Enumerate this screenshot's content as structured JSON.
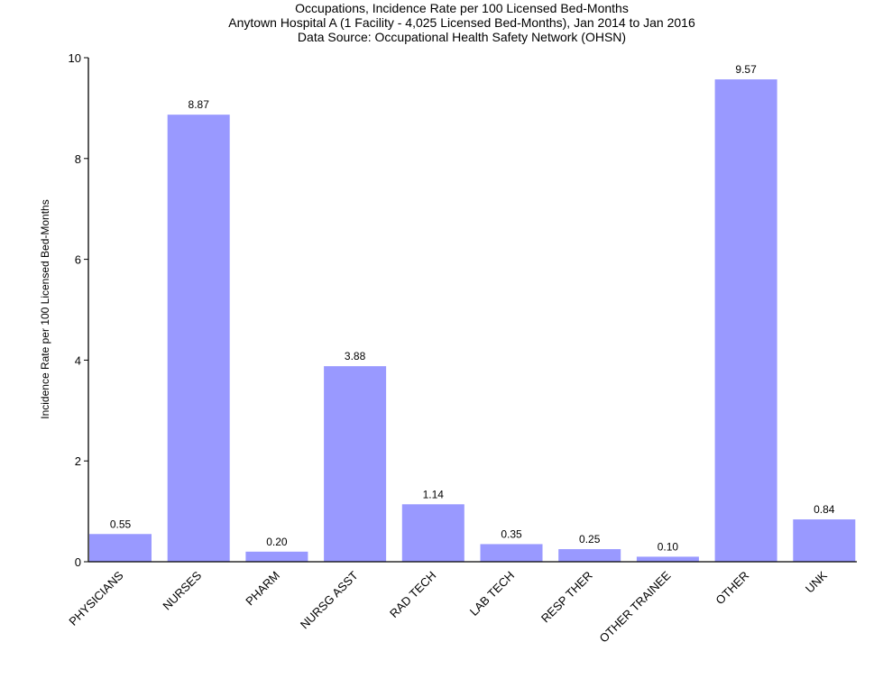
{
  "chart_data": {
    "type": "bar",
    "title": "Occupations, Incidence Rate per 100 Licensed Bed-Months",
    "subtitle": "Anytown Hospital A (1 Facility - 4,025 Licensed Bed-Months), Jan 2014 to Jan 2016",
    "subtitle2": "Data Source: Occupational Health Safety Network (OHSN)",
    "xlabel": "",
    "ylabel": "Incidence Rate per 100 Licensed Bed-Months",
    "ylim": [
      0,
      10
    ],
    "yticks": [
      0,
      2,
      4,
      6,
      8,
      10
    ],
    "grid": false,
    "bar_color": "#9999ff",
    "categories": [
      "PHYSICIANS",
      "NURSES",
      "PHARM",
      "NURSG ASST",
      "RAD TECH",
      "LAB TECH",
      "RESP THER",
      "OTHER TRAINEE",
      "OTHER",
      "UNK"
    ],
    "values": [
      0.55,
      8.87,
      0.2,
      3.88,
      1.14,
      0.35,
      0.25,
      0.1,
      9.57,
      0.84
    ],
    "data_labels": [
      "0.55",
      "8.87",
      "0.20",
      "3.88",
      "1.14",
      "0.35",
      "0.25",
      "0.10",
      "9.57",
      "0.84"
    ]
  }
}
